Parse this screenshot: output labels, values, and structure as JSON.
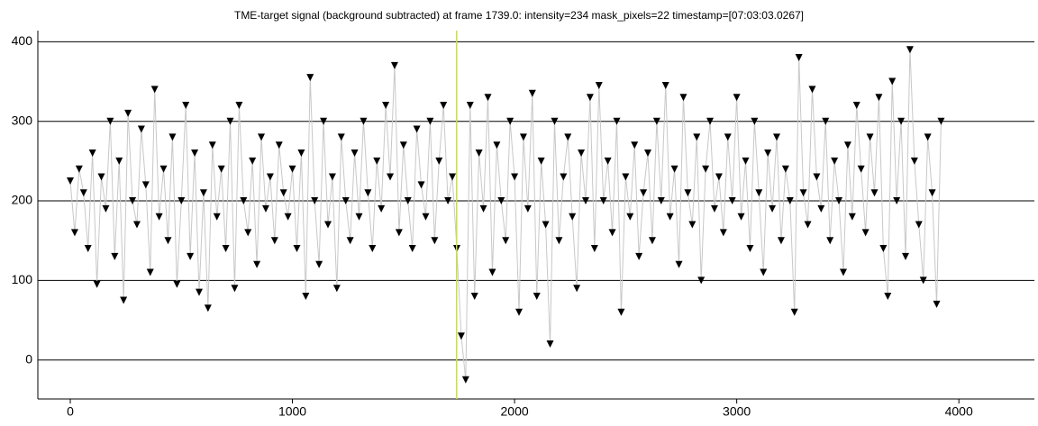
{
  "chart_data": {
    "type": "line",
    "title": "TME-target signal (background subtracted) at frame 1739.0: intensity=234 mask_pixels=22 timestamp=[07:03:03.0267]",
    "x": [
      0,
      20,
      40,
      60,
      80,
      100,
      120,
      140,
      160,
      180,
      200,
      220,
      240,
      260,
      280,
      300,
      320,
      340,
      360,
      380,
      400,
      420,
      440,
      460,
      480,
      500,
      520,
      540,
      560,
      580,
      600,
      620,
      640,
      660,
      680,
      700,
      720,
      740,
      760,
      780,
      800,
      820,
      840,
      860,
      880,
      900,
      920,
      940,
      960,
      980,
      1000,
      1020,
      1040,
      1060,
      1080,
      1100,
      1120,
      1140,
      1160,
      1180,
      1200,
      1220,
      1240,
      1260,
      1280,
      1300,
      1320,
      1340,
      1360,
      1380,
      1400,
      1420,
      1440,
      1460,
      1480,
      1500,
      1520,
      1540,
      1560,
      1580,
      1600,
      1620,
      1640,
      1660,
      1680,
      1700,
      1720,
      1740,
      1760,
      1780,
      1800,
      1820,
      1840,
      1860,
      1880,
      1900,
      1920,
      1940,
      1960,
      1980,
      2000,
      2020,
      2040,
      2060,
      2080,
      2100,
      2120,
      2140,
      2160,
      2180,
      2200,
      2220,
      2240,
      2260,
      2280,
      2300,
      2320,
      2340,
      2360,
      2380,
      2400,
      2420,
      2440,
      2460,
      2480,
      2500,
      2520,
      2540,
      2560,
      2580,
      2600,
      2620,
      2640,
      2660,
      2680,
      2700,
      2720,
      2740,
      2760,
      2780,
      2800,
      2820,
      2840,
      2860,
      2880,
      2900,
      2920,
      2940,
      2960,
      2980,
      3000,
      3020,
      3040,
      3060,
      3080,
      3100,
      3120,
      3140,
      3160,
      3180,
      3200,
      3220,
      3240,
      3260,
      3280,
      3300,
      3320,
      3340,
      3360,
      3380,
      3400,
      3420,
      3440,
      3460,
      3480,
      3500,
      3520,
      3540,
      3560,
      3580,
      3600,
      3620,
      3640,
      3660,
      3680,
      3700,
      3720,
      3740,
      3760,
      3780,
      3800,
      3820,
      3840,
      3860,
      3880,
      3900,
      3920
    ],
    "series": [
      {
        "color": "#000000",
        "line_color": "#c8c8c8",
        "values": [
          225,
          160,
          240,
          210,
          140,
          260,
          95,
          230,
          190,
          300,
          130,
          250,
          75,
          310,
          200,
          170,
          290,
          220,
          110,
          340,
          180,
          240,
          150,
          280,
          95,
          200,
          320,
          130,
          260,
          85,
          210,
          65,
          270,
          180,
          240,
          140,
          300,
          90,
          320,
          200,
          160,
          250,
          120,
          280,
          190,
          230,
          150,
          270,
          210,
          180,
          240,
          140,
          260,
          80,
          355,
          200,
          120,
          300,
          170,
          230,
          90,
          280,
          200,
          150,
          260,
          180,
          300,
          210,
          140,
          250,
          190,
          320,
          230,
          370,
          160,
          270,
          200,
          140,
          290,
          220,
          180,
          300,
          150,
          250,
          320,
          200,
          230,
          140,
          30,
          -25,
          320,
          80,
          260,
          190,
          330,
          110,
          270,
          200,
          150,
          300,
          230,
          60,
          280,
          190,
          335,
          80,
          250,
          170,
          20,
          300,
          150,
          230,
          280,
          180,
          90,
          260,
          200,
          330,
          140,
          345,
          200,
          250,
          160,
          300,
          60,
          230,
          180,
          270,
          130,
          210,
          260,
          150,
          300,
          200,
          345,
          180,
          240,
          120,
          330,
          210,
          170,
          280,
          100,
          240,
          300,
          190,
          230,
          160,
          280,
          200,
          330,
          180,
          250,
          140,
          300,
          210,
          110,
          260,
          190,
          280,
          150,
          240,
          200,
          60,
          380,
          210,
          170,
          340,
          230,
          190,
          300,
          150,
          250,
          200,
          110,
          270,
          180,
          320,
          240,
          160,
          280,
          210,
          330,
          140,
          80,
          350,
          200,
          300,
          130,
          390,
          250,
          170,
          100,
          280,
          210,
          70,
          300
        ]
      }
    ],
    "frame_marker": 1739,
    "frame_marker_color": "#c8d86a",
    "xlim": [
      -146,
      4340
    ],
    "ylim": [
      -49,
      414
    ],
    "xticks": [
      0,
      1000,
      2000,
      3000,
      4000
    ],
    "yticks": [
      0,
      100,
      200,
      300,
      400
    ],
    "grid": true
  }
}
